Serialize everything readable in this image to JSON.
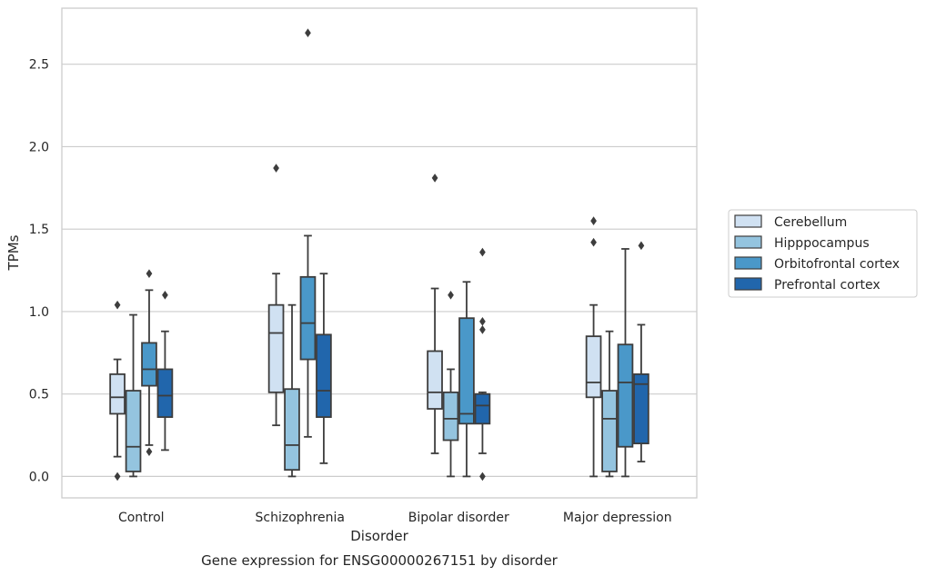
{
  "chart_data": {
    "type": "box",
    "xlabel": "Disorder",
    "ylabel": "TPMs",
    "caption": "Gene expression for ENSG00000267151 by disorder",
    "ylim": [
      -0.13,
      2.84
    ],
    "yticks": [
      0.0,
      0.5,
      1.0,
      1.5,
      2.0,
      2.5
    ],
    "ytick_labels": [
      "0.0",
      "0.5",
      "1.0",
      "1.5",
      "2.0",
      "2.5"
    ],
    "grid": "horizontal",
    "legend_position": "right",
    "categories": [
      "Control",
      "Schizophrenia",
      "Bipolar disorder",
      "Major depression"
    ],
    "series": [
      {
        "name": "Cerebellum",
        "color": "#d0e1f2",
        "boxes": [
          {
            "whisker_low": 0.12,
            "q1": 0.38,
            "median": 0.48,
            "q3": 0.62,
            "whisker_high": 0.71,
            "outliers": [
              0.0,
              1.04
            ]
          },
          {
            "whisker_low": 0.31,
            "q1": 0.51,
            "median": 0.87,
            "q3": 1.04,
            "whisker_high": 1.23,
            "outliers": [
              1.87
            ]
          },
          {
            "whisker_low": 0.14,
            "q1": 0.41,
            "median": 0.51,
            "q3": 0.76,
            "whisker_high": 1.14,
            "outliers": [
              1.81
            ]
          },
          {
            "whisker_low": 0.0,
            "q1": 0.48,
            "median": 0.57,
            "q3": 0.85,
            "whisker_high": 1.04,
            "outliers": [
              1.42,
              1.55
            ]
          }
        ]
      },
      {
        "name": "Hipppocampus",
        "color": "#94c4df",
        "boxes": [
          {
            "whisker_low": 0.0,
            "q1": 0.03,
            "median": 0.18,
            "q3": 0.52,
            "whisker_high": 0.98,
            "outliers": []
          },
          {
            "whisker_low": 0.0,
            "q1": 0.04,
            "median": 0.19,
            "q3": 0.53,
            "whisker_high": 1.04,
            "outliers": []
          },
          {
            "whisker_low": 0.0,
            "q1": 0.22,
            "median": 0.35,
            "q3": 0.51,
            "whisker_high": 0.65,
            "outliers": [
              1.1
            ]
          },
          {
            "whisker_low": 0.0,
            "q1": 0.03,
            "median": 0.35,
            "q3": 0.52,
            "whisker_high": 0.88,
            "outliers": []
          }
        ]
      },
      {
        "name": "Orbitofrontal cortex",
        "color": "#4a98c9",
        "boxes": [
          {
            "whisker_low": 0.19,
            "q1": 0.55,
            "median": 0.65,
            "q3": 0.81,
            "whisker_high": 1.13,
            "outliers": [
              0.15,
              1.23
            ]
          },
          {
            "whisker_low": 0.24,
            "q1": 0.71,
            "median": 0.93,
            "q3": 1.21,
            "whisker_high": 1.46,
            "outliers": [
              2.69
            ]
          },
          {
            "whisker_low": 0.0,
            "q1": 0.32,
            "median": 0.38,
            "q3": 0.96,
            "whisker_high": 1.18,
            "outliers": []
          },
          {
            "whisker_low": 0.0,
            "q1": 0.18,
            "median": 0.57,
            "q3": 0.8,
            "whisker_high": 1.38,
            "outliers": []
          }
        ]
      },
      {
        "name": "Prefrontal cortex",
        "color": "#2166ac",
        "boxes": [
          {
            "whisker_low": 0.16,
            "q1": 0.36,
            "median": 0.49,
            "q3": 0.65,
            "whisker_high": 0.88,
            "outliers": [
              1.1
            ]
          },
          {
            "whisker_low": 0.08,
            "q1": 0.36,
            "median": 0.52,
            "q3": 0.86,
            "whisker_high": 1.23,
            "outliers": []
          },
          {
            "whisker_low": 0.14,
            "q1": 0.32,
            "median": 0.43,
            "q3": 0.5,
            "whisker_high": 0.51,
            "outliers": [
              0.0,
              0.89,
              0.94,
              1.36
            ]
          },
          {
            "whisker_low": 0.09,
            "q1": 0.2,
            "median": 0.56,
            "q3": 0.62,
            "whisker_high": 0.92,
            "outliers": [
              1.4
            ]
          }
        ]
      }
    ]
  }
}
